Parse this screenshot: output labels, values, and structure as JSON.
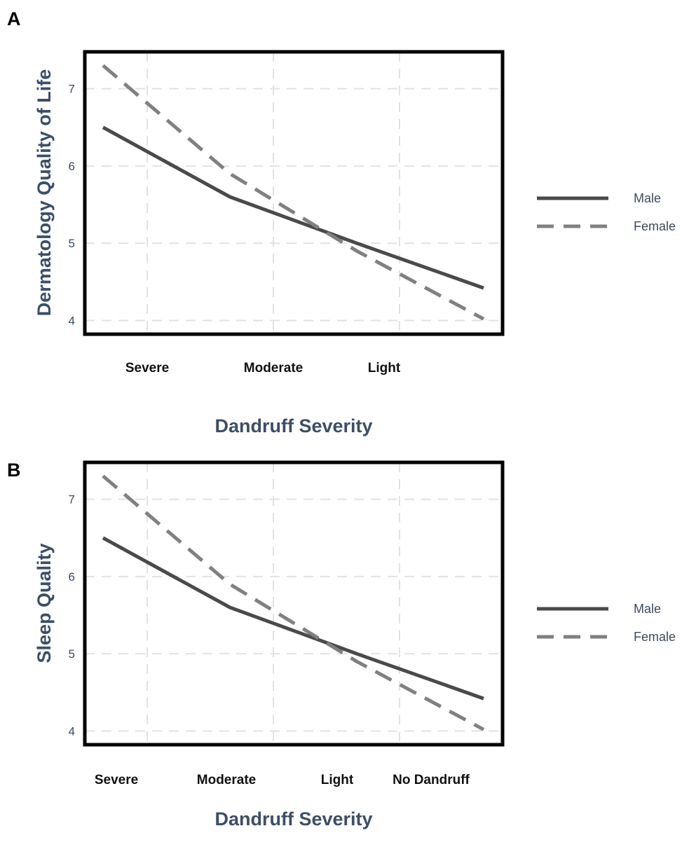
{
  "chart_data": [
    {
      "type": "line",
      "panel": "A",
      "categories": [
        "Severe",
        "Moderate",
        "Light",
        ""
      ],
      "x": [
        1,
        2,
        3,
        4
      ],
      "series": [
        {
          "name": "Male",
          "values": [
            6.5,
            5.6,
            5.0,
            4.42
          ],
          "color": "#4a4a4a",
          "style": "solid"
        },
        {
          "name": "Female",
          "values": [
            7.3,
            5.9,
            4.9,
            4.02
          ],
          "color": "#808080",
          "style": "dashed"
        }
      ],
      "title": "",
      "xlabel": "Dandruff Severity",
      "ylabel": "Dermatology Quality of Life",
      "yticks": [
        4,
        5,
        6,
        7
      ],
      "ylim": [
        3.85,
        7.45
      ],
      "xlim": [
        0.5,
        4.0
      ],
      "grid": true,
      "legend_position": "right"
    },
    {
      "type": "line",
      "panel": "B",
      "categories": [
        "Severe",
        "Moderate",
        "Light",
        "No Dandruff"
      ],
      "x": [
        1,
        2,
        3,
        4
      ],
      "series": [
        {
          "name": "Male",
          "values": [
            6.5,
            5.6,
            5.0,
            4.42
          ],
          "color": "#4a4a4a",
          "style": "solid"
        },
        {
          "name": "Female",
          "values": [
            7.3,
            5.9,
            4.9,
            4.02
          ],
          "color": "#808080",
          "style": "dashed"
        }
      ],
      "title": "",
      "xlabel": "Dandruff Severity",
      "ylabel": "Sleep Quality",
      "yticks": [
        4,
        5,
        6,
        7
      ],
      "ylim": [
        3.85,
        7.45
      ],
      "xlim": [
        0.5,
        4.0
      ],
      "grid": true,
      "legend_position": "right"
    }
  ]
}
